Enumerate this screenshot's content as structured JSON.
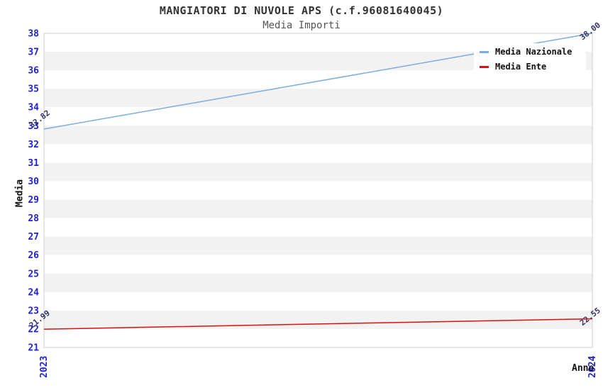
{
  "chart_data": {
    "type": "line",
    "title": "MANGIATORI DI NUVOLE APS (c.f.96081640045)",
    "subtitle": "Media Importi",
    "xlabel": "Anno",
    "ylabel": "Media",
    "x_tick_labels": [
      "2023",
      "2024"
    ],
    "ylim": [
      21,
      38
    ],
    "y_tick_step": 1,
    "grid": "horizontal-alternating-bands",
    "legend_position": "top-right-inside",
    "series": [
      {
        "name": "Media Nazionale",
        "color": "#7aaede",
        "values": [
          32.82,
          38.0
        ],
        "point_labels": [
          "32.82",
          "38.00"
        ]
      },
      {
        "name": "Media Ente",
        "color": "#dd1111",
        "values": [
          21.99,
          22.55
        ],
        "point_labels": [
          "21.99",
          "22.55"
        ]
      }
    ]
  },
  "colors": {
    "background": "#ffffff",
    "band_white": "#ffffff",
    "band_gray": "#f2f2f2",
    "plot_border": "#cccccc",
    "tick_label": "#2222cc",
    "point_label": "#333366",
    "title_text": "#333333",
    "subtitle_text": "#555555",
    "axis_label_text": "#111111",
    "legend_text": "#111111"
  }
}
